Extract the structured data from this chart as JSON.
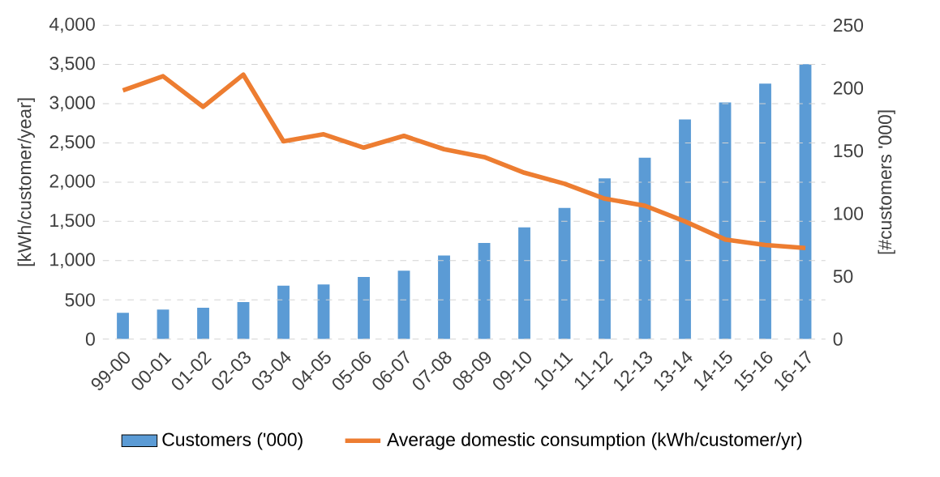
{
  "chart_data": {
    "type": "bar",
    "ylabel": "[kWh/customer/year]",
    "y2label": "[#customers '000]",
    "categories": [
      "99-00",
      "00-01",
      "01-02",
      "02-03",
      "03-04",
      "04-05",
      "05-06",
      "06-07",
      "07-08",
      "08-09",
      "09-10",
      "10-11",
      "11-12",
      "12-13",
      "13-14",
      "14-15",
      "15-16",
      "16-17"
    ],
    "series": [
      {
        "name": "Customers ('000)",
        "axis": "y2",
        "color": "#5b9bd5",
        "values": [
          21,
          23.5,
          25,
          29.5,
          42.5,
          43.5,
          49.5,
          54.5,
          66.5,
          76.5,
          89,
          104.5,
          128,
          144.5,
          175,
          188.5,
          203.5,
          219
        ]
      },
      {
        "name": "Average domestic consumption (kWh/customer/yr)",
        "type": "line",
        "color": "#ed7d31",
        "values": [
          3170,
          3350,
          2960,
          3370,
          2520,
          2610,
          2440,
          2590,
          2420,
          2320,
          2120,
          1980,
          1790,
          1700,
          1500,
          1270,
          1200,
          1160
        ]
      }
    ],
    "ylim": [
      0,
      4000
    ],
    "yticks": [
      0,
      {
        "value": 500,
        "label": "500"
      },
      {
        "value": 1000,
        "label": "1,000"
      },
      {
        "value": 1500,
        "label": "1,500"
      },
      {
        "value": 2000,
        "label": "2,000"
      },
      {
        "value": 2500,
        "label": "2,500"
      },
      {
        "value": 3000,
        "label": "3,000"
      },
      {
        "value": 3500,
        "label": "3,500"
      },
      {
        "value": 4000,
        "label": "4,000"
      }
    ],
    "y2lim": [
      0,
      250
    ],
    "y2ticks": [
      0,
      50,
      100,
      150,
      200,
      250
    ],
    "grid": "y",
    "legend": "bottom"
  }
}
